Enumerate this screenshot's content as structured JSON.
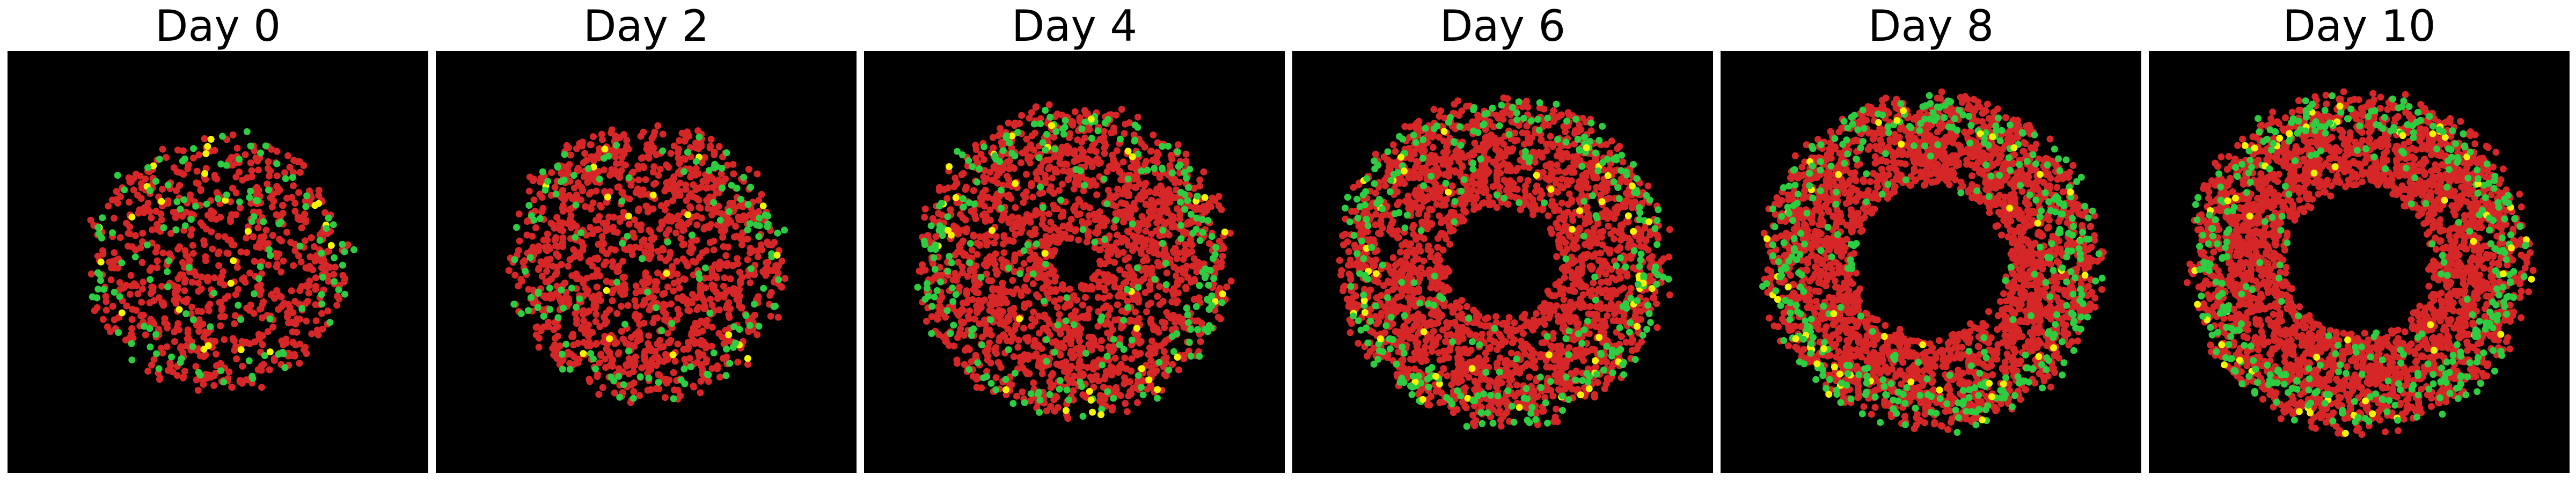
{
  "figure": {
    "background": "#ffffff",
    "panel_background": "#000000",
    "panels": [
      {
        "title": "Day 0",
        "hole": 0.0,
        "density": 900
      },
      {
        "title": "Day 2",
        "hole": 0.0,
        "density": 1400
      },
      {
        "title": "Day 4",
        "hole": 0.15,
        "density": 2100
      },
      {
        "title": "Day 6",
        "hole": 0.35,
        "density": 2600
      },
      {
        "title": "Day 8",
        "hole": 0.48,
        "density": 3000
      },
      {
        "title": "Day 10",
        "hole": 0.45,
        "density": 3200
      }
    ],
    "cell_colors": {
      "red": "#d62728",
      "green": "#2ecc40",
      "yellow": "#f5f500"
    }
  }
}
